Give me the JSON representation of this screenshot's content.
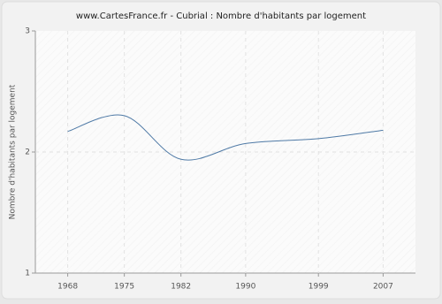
{
  "chart_data": {
    "type": "line",
    "title": "www.CartesFrance.fr - Cubrial : Nombre d'habitants par logement",
    "y_label": "Nombre d'habitants par logement",
    "x": [
      1968,
      1975,
      1982,
      1990,
      1999,
      2007
    ],
    "series": [
      {
        "name": "Cubrial",
        "color": "#4f7aa6",
        "values": [
          2.17,
          2.3,
          1.94,
          2.07,
          2.11,
          2.18
        ]
      }
    ],
    "xlim": [
      1964,
      2011
    ],
    "xticks": [
      1968,
      1975,
      1982,
      1990,
      1999,
      2007
    ],
    "ylim": [
      1,
      3
    ],
    "yticks": [
      1,
      2,
      3
    ],
    "grid": true
  }
}
